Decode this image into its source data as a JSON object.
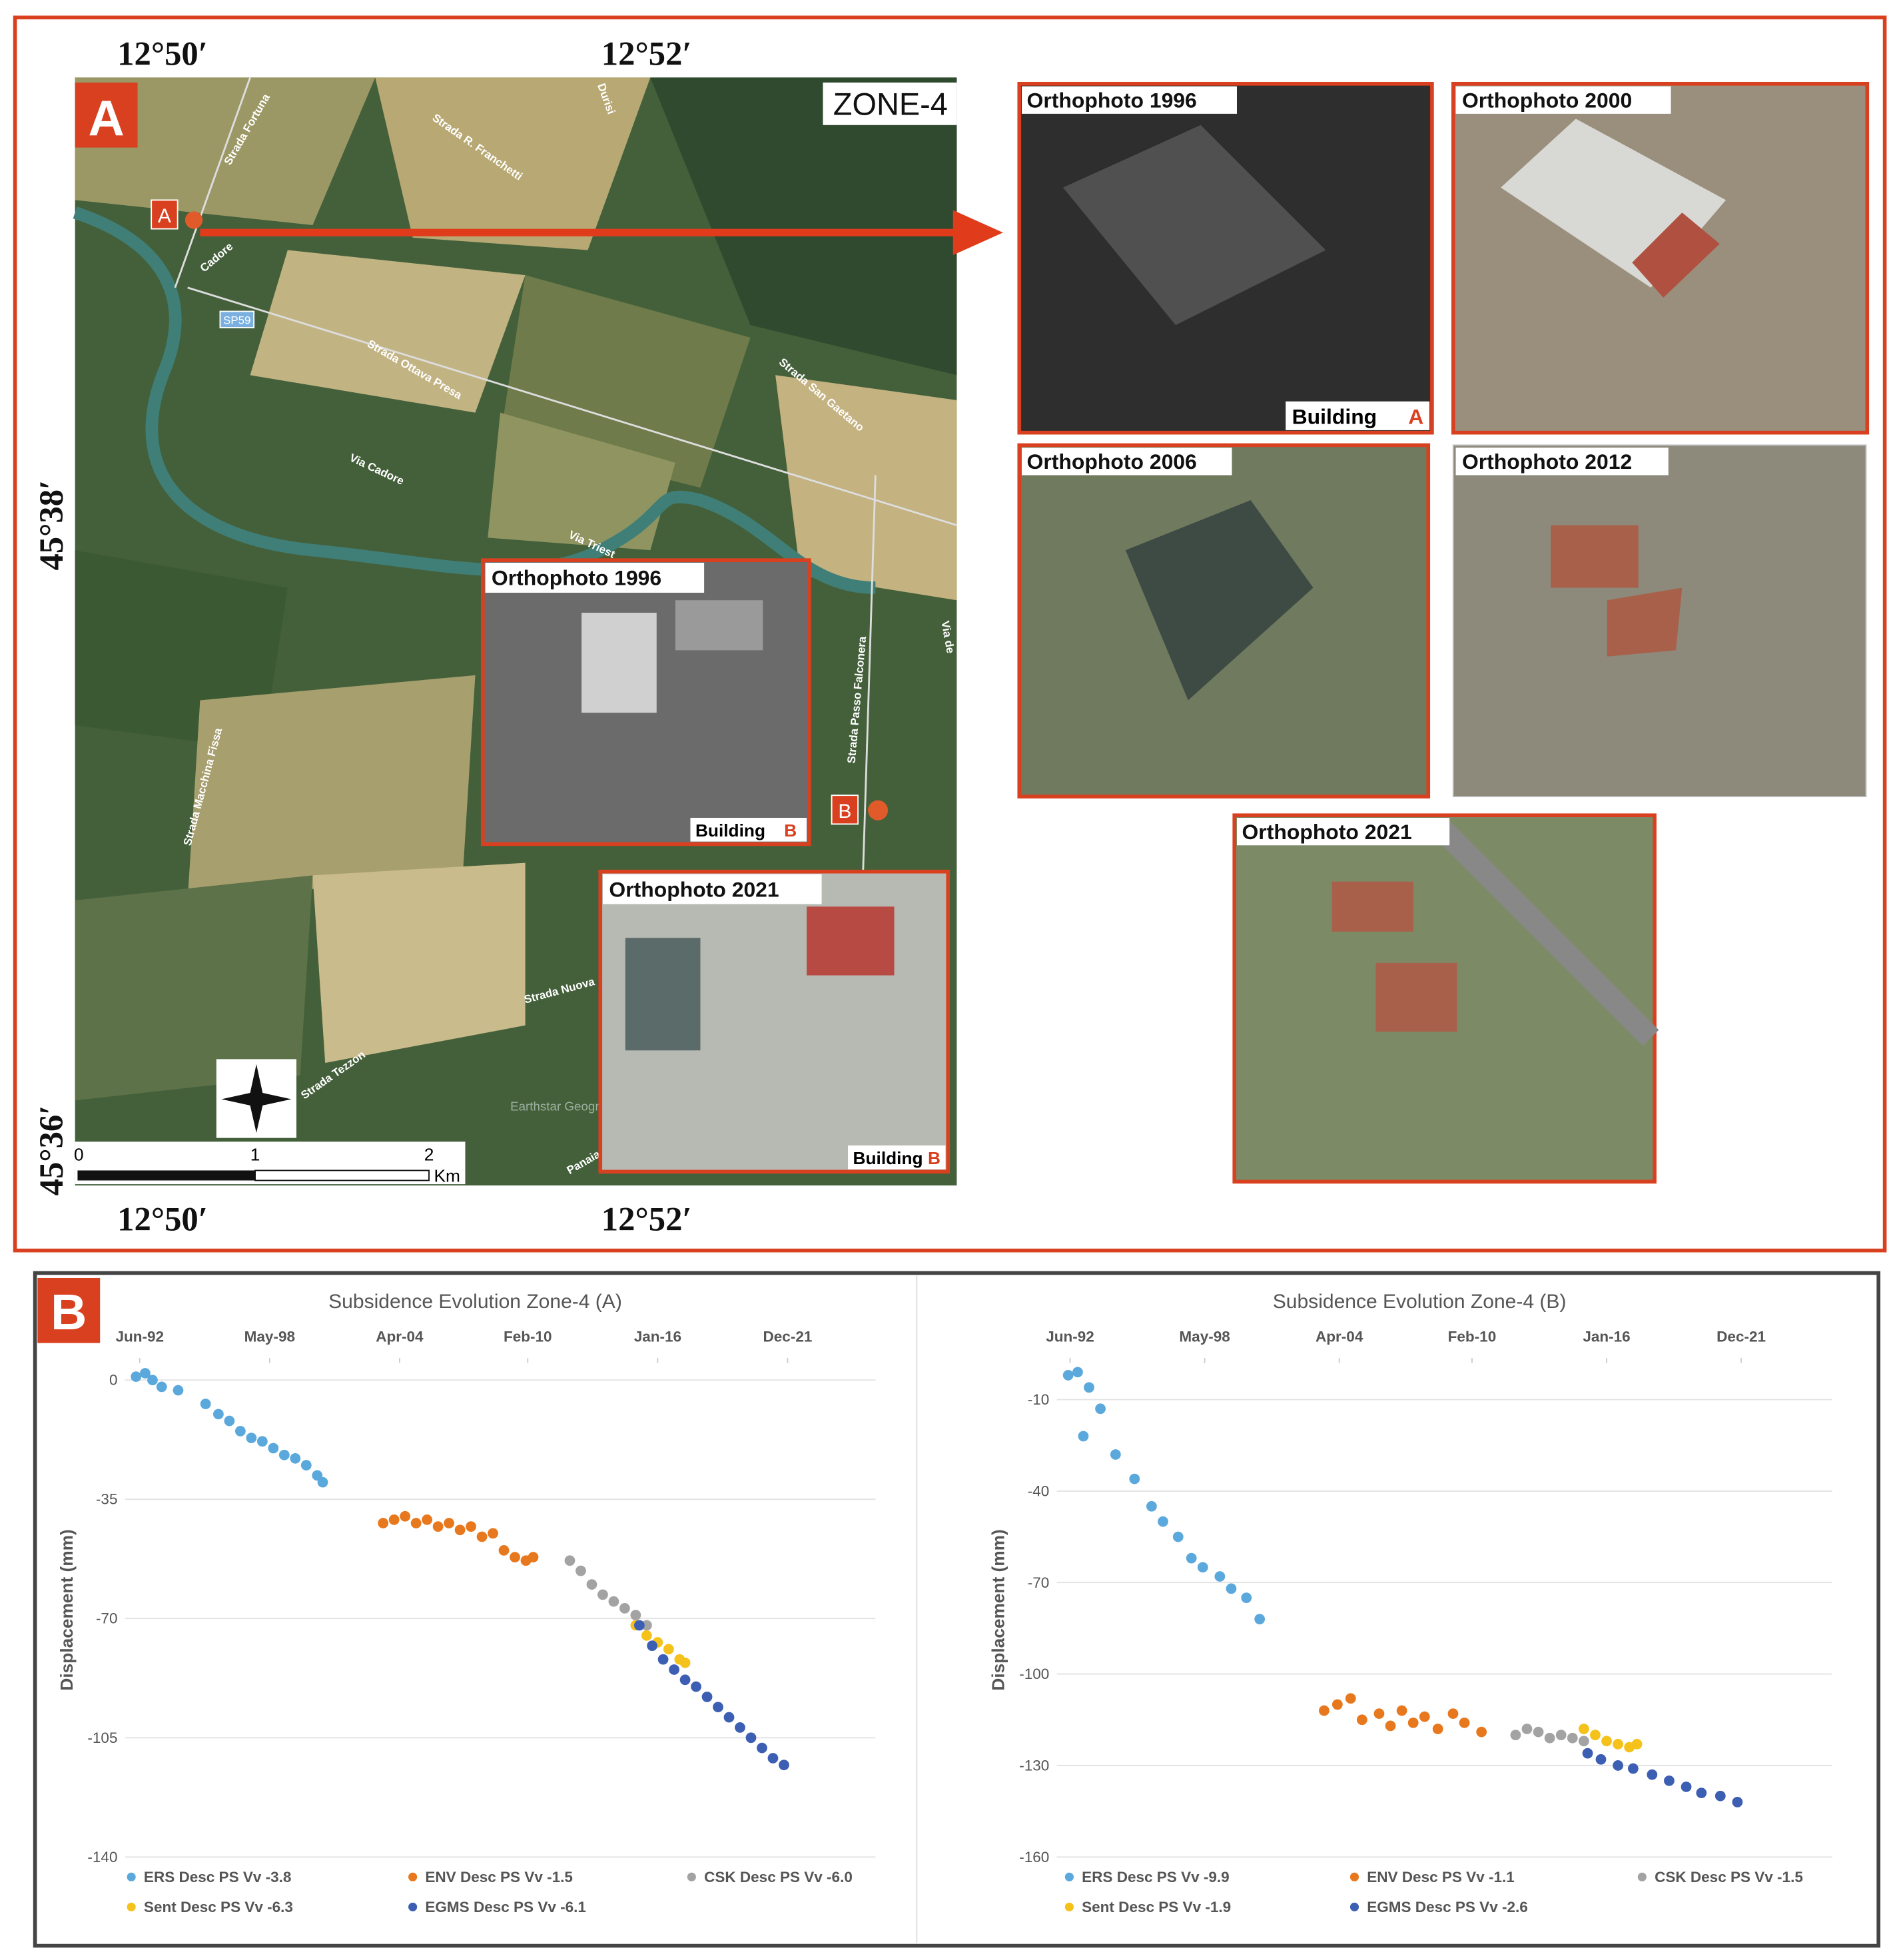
{
  "map": {
    "panel_label": "A",
    "zone": "ZONE-4",
    "lon_top": [
      "12°50′",
      "12°52′"
    ],
    "lon_bottom": [
      "12°50′",
      "12°52′"
    ],
    "lat": [
      "45°38′",
      "45°36′"
    ],
    "roads": [
      "Strada Fortuna",
      "Strada R. Franchetti",
      "Durisi",
      "Cadore",
      "SP59",
      "Strada Ottava Presa",
      "Strada San Gaetano",
      "Via Cadore",
      "Via Triest",
      "Strada Passo Falconera",
      "Via de",
      "Strada Macchina Fissa",
      "Strada Nuova",
      "Strada Tezzon",
      "Earthstar Geograph",
      "Panaia"
    ],
    "markers": [
      "A",
      "B"
    ],
    "scale": {
      "ticks": [
        0,
        1,
        2
      ],
      "unit": "Km"
    },
    "insets": [
      {
        "title": "Orthophoto 1996",
        "label": "Building",
        "site": "B"
      },
      {
        "title": "Orthophoto 2021",
        "label": "Building",
        "site": "B"
      }
    ],
    "orthophotos": [
      {
        "title": "Orthophoto 1996",
        "label": "Building",
        "site": "A"
      },
      {
        "title": "Orthophoto 2000"
      },
      {
        "title": "Orthophoto 2006"
      },
      {
        "title": "Orthophoto 2012"
      },
      {
        "title": "Orthophoto 2021"
      }
    ]
  },
  "panel_b_label": "B",
  "chart_data": [
    {
      "type": "scatter",
      "title": "Subsidence Evolution Zone-4 (A)",
      "y_label": "Displacement (mm)",
      "x_axis_position": "top",
      "grid": true,
      "xlim": [
        "1991-10",
        "2025-12"
      ],
      "xticks": [
        {
          "value": "1992-06",
          "label": "Jun-92"
        },
        {
          "value": "1998-05",
          "label": "May-98"
        },
        {
          "value": "2004-04",
          "label": "Apr-04"
        },
        {
          "value": "2010-02",
          "label": "Feb-10"
        },
        {
          "value": "2016-01",
          "label": "Jan-16"
        },
        {
          "value": "2021-12",
          "label": "Dec-21"
        }
      ],
      "ylim": [
        -140,
        5
      ],
      "yticks": [
        0,
        -35,
        -70,
        -105,
        -140
      ],
      "series": [
        {
          "name": "ERS Desc PS Vv -3.8",
          "color": "#5ba8dc",
          "x": [
            "1992-04",
            "1992-09",
            "1993-01",
            "1993-06",
            "1994-03",
            "1995-06",
            "1996-01",
            "1996-07",
            "1997-01",
            "1997-07",
            "1998-01",
            "1998-07",
            "1999-01",
            "1999-07",
            "2000-01",
            "2000-07",
            "2000-10"
          ],
          "values": [
            1,
            2,
            0,
            -2,
            -3,
            -7,
            -10,
            -12,
            -15,
            -17,
            -18,
            -20,
            -22,
            -23,
            -25,
            -28,
            -30
          ]
        },
        {
          "name": "ENV Desc PS Vv -1.5",
          "color": "#e8781d",
          "x": [
            "2003-07",
            "2004-01",
            "2004-07",
            "2005-01",
            "2005-07",
            "2006-01",
            "2006-07",
            "2007-01",
            "2007-07",
            "2008-01",
            "2008-07",
            "2009-01",
            "2009-07",
            "2010-01",
            "2010-05"
          ],
          "values": [
            -42,
            -41,
            -40,
            -42,
            -41,
            -43,
            -42,
            -44,
            -43,
            -46,
            -45,
            -50,
            -52,
            -53,
            -52
          ]
        },
        {
          "name": "CSK Desc PS Vv -6.0",
          "color": "#a3a3a3",
          "x": [
            "2012-01",
            "2012-07",
            "2013-01",
            "2013-07",
            "2014-01",
            "2014-07",
            "2015-01",
            "2015-07"
          ],
          "values": [
            -53,
            -56,
            -60,
            -63,
            -65,
            -67,
            -69,
            -72
          ]
        },
        {
          "name": "Sent Desc PS Vv -6.3",
          "color": "#f4c21a",
          "x": [
            "2015-01",
            "2015-07",
            "2016-01",
            "2016-07",
            "2017-01",
            "2017-04"
          ],
          "values": [
            -72,
            -75,
            -77,
            -79,
            -82,
            -83
          ]
        },
        {
          "name": "EGMS Desc PS Vv -6.1",
          "color": "#3c5fb4",
          "x": [
            "2015-03",
            "2015-10",
            "2016-04",
            "2016-10",
            "2017-04",
            "2017-10",
            "2018-04",
            "2018-10",
            "2019-04",
            "2019-10",
            "2020-04",
            "2020-10",
            "2021-04",
            "2021-10"
          ],
          "values": [
            -72,
            -78,
            -82,
            -85,
            -88,
            -90,
            -93,
            -96,
            -99,
            -102,
            -105,
            -108,
            -111,
            -113
          ]
        }
      ]
    },
    {
      "type": "scatter",
      "title": "Subsidence Evolution Zone-4 (B)",
      "y_label": "Displacement (mm)",
      "x_axis_position": "top",
      "grid": true,
      "xlim": [
        "1991-11",
        "2025-12"
      ],
      "xticks": [
        {
          "value": "1992-06",
          "label": "Jun-92"
        },
        {
          "value": "1998-05",
          "label": "May-98"
        },
        {
          "value": "2004-04",
          "label": "Apr-04"
        },
        {
          "value": "2010-02",
          "label": "Feb-10"
        },
        {
          "value": "2016-01",
          "label": "Jan-16"
        },
        {
          "value": "2021-12",
          "label": "Dec-21"
        }
      ],
      "ylim": [
        -160,
        2
      ],
      "yticks": [
        -10,
        -40,
        -70,
        -100,
        -130,
        -160
      ],
      "series": [
        {
          "name": "ERS Desc PS Vv -9.9",
          "color": "#5ba8dc",
          "x": [
            "1992-05",
            "1992-10",
            "1993-01",
            "1993-04",
            "1993-10",
            "1994-06",
            "1995-04",
            "1996-01",
            "1996-07",
            "1997-03",
            "1997-10",
            "1998-04",
            "1999-01",
            "1999-07",
            "2000-03",
            "2000-10"
          ],
          "values": [
            -2,
            -1,
            -22,
            -6,
            -13,
            -28,
            -36,
            -45,
            -50,
            -55,
            -62,
            -65,
            -68,
            -72,
            -75,
            -82
          ]
        },
        {
          "name": "ENV Desc PS Vv -1.1",
          "color": "#e8781d",
          "x": [
            "2003-08",
            "2004-03",
            "2004-10",
            "2005-04",
            "2006-01",
            "2006-07",
            "2007-01",
            "2007-07",
            "2008-01",
            "2008-08",
            "2009-04",
            "2009-10",
            "2010-07"
          ],
          "values": [
            -112,
            -110,
            -108,
            -115,
            -113,
            -117,
            -112,
            -116,
            -114,
            -118,
            -113,
            -116,
            -119
          ]
        },
        {
          "name": "CSK Desc PS Vv -1.5",
          "color": "#a3a3a3",
          "x": [
            "2012-01",
            "2012-07",
            "2013-01",
            "2013-07",
            "2014-01",
            "2014-07",
            "2015-01"
          ],
          "values": [
            -120,
            -118,
            -119,
            -121,
            -120,
            -121,
            -122
          ]
        },
        {
          "name": "Sent Desc PS Vv -1.9",
          "color": "#f4c21a",
          "x": [
            "2015-01",
            "2015-07",
            "2016-01",
            "2016-07",
            "2017-01",
            "2017-05"
          ],
          "values": [
            -118,
            -120,
            -122,
            -123,
            -124,
            -123
          ]
        },
        {
          "name": "EGMS Desc PS Vv -2.6",
          "color": "#3c5fb4",
          "x": [
            "2015-03",
            "2015-10",
            "2016-07",
            "2017-03",
            "2018-01",
            "2018-10",
            "2019-07",
            "2020-03",
            "2021-01",
            "2021-10"
          ],
          "values": [
            -126,
            -128,
            -130,
            -131,
            -133,
            -135,
            -137,
            -139,
            -140,
            -142
          ]
        }
      ]
    }
  ]
}
